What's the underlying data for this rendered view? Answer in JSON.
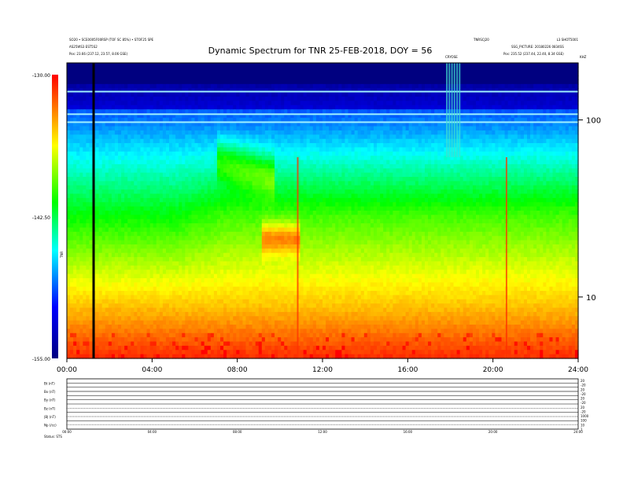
{
  "chart_data": {
    "type": "heatmap",
    "title": "Dynamic Spectrum for TNR 25-FEB-2018, DOY = 56",
    "x_ticks": [
      "00:00",
      "04:00",
      "08:00",
      "12:00",
      "16:00",
      "20:00",
      "24:00"
    ],
    "x_range_hours": [
      0,
      24
    ],
    "y_scale": "log",
    "y_ticks": [
      10,
      100
    ],
    "y_range": [
      4.5,
      210
    ],
    "colorbar": {
      "ticks": [
        "-130.00",
        "-142.50",
        "-155.00"
      ],
      "range": [
        -155.0,
        -130.0
      ],
      "label": "TNR",
      "colors": [
        "#000080",
        "#0000ff",
        "#00ffff",
        "#00ff00",
        "#ffff00",
        "#ff0000"
      ]
    },
    "features": {
      "black_gap_hour": 1.2,
      "spike_hours": [
        10.8,
        20.6
      ],
      "burst_hour_range": [
        17.8,
        18.4
      ]
    },
    "header": {
      "left_line1": "SO20 • SCE0005F00RSP (TOF SC 85%) • STOF25 SPE",
      "left_line2": "AS25WS3 EST5S2",
      "left_pos": "Pos:   23.66 (237.12, 23.57, 8.06 GSE)",
      "right_line1": "TNRSCJ20",
      "right_line2": "L3 SHOT5001",
      "right_line3": "SSG_PICTURE: 20180226 0834SS",
      "right_pos": "Pos:   235.52 (237.44, 22.40, 8.34 GSE)",
      "top_marker": "CRYOSE",
      "top_right": "KHZ"
    },
    "bottom_panel": {
      "rows": [
        "Bt (nT)",
        "Bx (nT)",
        "By (nT)",
        "Bz (nT)",
        "|B| (nT)",
        "Np (/cc)"
      ],
      "right_labels": [
        "20",
        "-20",
        "20",
        "-20",
        "20",
        "-20",
        "20",
        "-20",
        "1000",
        "100",
        "10",
        "1"
      ],
      "x_labels": [
        "00:00",
        "04:00",
        "08:00",
        "12:00",
        "16:00",
        "20:00",
        "24:00"
      ],
      "footer": "Status:  STS"
    }
  }
}
